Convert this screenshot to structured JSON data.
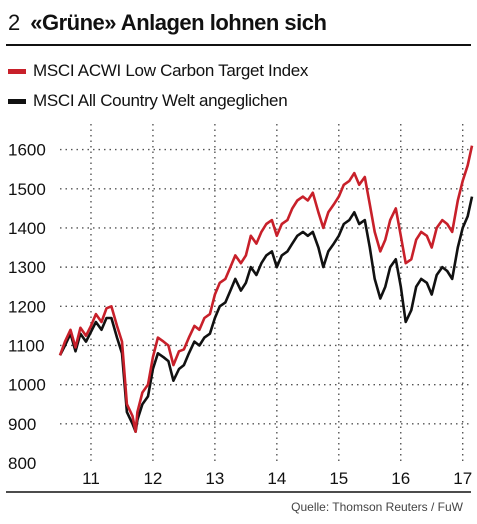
{
  "figure": {
    "number": "2",
    "title": "«Grüne» Anlagen lohnen sich",
    "source": "Quelle: Thomson Reuters / FuW"
  },
  "colors": {
    "red_series": "#c8202a",
    "black_series": "#111111",
    "grid": "#555555"
  },
  "chart_data": {
    "type": "line",
    "title": "«Grüne» Anlagen lohnen sich",
    "xlabel": "",
    "ylabel": "",
    "ylim": [
      800,
      1650
    ],
    "xlim": [
      2010.5,
      2017.15
    ],
    "yticks": [
      800,
      900,
      1000,
      1100,
      1200,
      1300,
      1400,
      1500,
      1600
    ],
    "xtick_labels": [
      "11",
      "12",
      "13",
      "14",
      "15",
      "16",
      "17"
    ],
    "xticks": [
      2011.0,
      2012.0,
      2013.0,
      2014.0,
      2015.0,
      2016.0,
      2017.0
    ],
    "grid": true,
    "legend_position": "top-left",
    "series": [
      {
        "name": "MSCI ACWI Low Carbon Target Index",
        "color": "#c8202a",
        "x": [
          2010.5,
          2010.58,
          2010.67,
          2010.75,
          2010.83,
          2010.92,
          2011.0,
          2011.08,
          2011.17,
          2011.25,
          2011.33,
          2011.42,
          2011.5,
          2011.58,
          2011.67,
          2011.72,
          2011.75,
          2011.83,
          2011.92,
          2012.0,
          2012.08,
          2012.17,
          2012.25,
          2012.33,
          2012.42,
          2012.5,
          2012.58,
          2012.67,
          2012.75,
          2012.83,
          2012.92,
          2013.0,
          2013.08,
          2013.17,
          2013.25,
          2013.33,
          2013.42,
          2013.5,
          2013.58,
          2013.67,
          2013.75,
          2013.83,
          2013.92,
          2014.0,
          2014.08,
          2014.17,
          2014.25,
          2014.33,
          2014.42,
          2014.5,
          2014.58,
          2014.67,
          2014.75,
          2014.83,
          2014.92,
          2015.0,
          2015.08,
          2015.17,
          2015.25,
          2015.33,
          2015.42,
          2015.5,
          2015.58,
          2015.67,
          2015.75,
          2015.83,
          2015.92,
          2016.0,
          2016.08,
          2016.17,
          2016.25,
          2016.33,
          2016.42,
          2016.5,
          2016.58,
          2016.67,
          2016.75,
          2016.83,
          2016.92,
          2017.0,
          2017.08,
          2017.15
        ],
        "y": [
          1075,
          1110,
          1140,
          1095,
          1145,
          1125,
          1150,
          1180,
          1160,
          1195,
          1200,
          1150,
          1110,
          950,
          920,
          880,
          930,
          980,
          1000,
          1070,
          1120,
          1110,
          1100,
          1050,
          1085,
          1090,
          1120,
          1150,
          1140,
          1170,
          1180,
          1230,
          1260,
          1270,
          1300,
          1330,
          1310,
          1330,
          1380,
          1360,
          1390,
          1410,
          1420,
          1380,
          1410,
          1420,
          1450,
          1470,
          1480,
          1470,
          1490,
          1440,
          1400,
          1440,
          1460,
          1480,
          1510,
          1520,
          1540,
          1510,
          1530,
          1460,
          1390,
          1340,
          1370,
          1420,
          1450,
          1380,
          1310,
          1320,
          1370,
          1390,
          1380,
          1350,
          1400,
          1420,
          1410,
          1390,
          1470,
          1520,
          1560,
          1610
        ]
      },
      {
        "name": "MSCI All Country Welt angeglichen",
        "color": "#111111",
        "x": [
          2010.5,
          2010.58,
          2010.67,
          2010.75,
          2010.83,
          2010.92,
          2011.0,
          2011.08,
          2011.17,
          2011.25,
          2011.33,
          2011.42,
          2011.5,
          2011.58,
          2011.67,
          2011.72,
          2011.75,
          2011.83,
          2011.92,
          2012.0,
          2012.08,
          2012.17,
          2012.25,
          2012.33,
          2012.42,
          2012.5,
          2012.58,
          2012.67,
          2012.75,
          2012.83,
          2012.92,
          2013.0,
          2013.08,
          2013.17,
          2013.25,
          2013.33,
          2013.42,
          2013.5,
          2013.58,
          2013.67,
          2013.75,
          2013.83,
          2013.92,
          2014.0,
          2014.08,
          2014.17,
          2014.25,
          2014.33,
          2014.42,
          2014.5,
          2014.58,
          2014.67,
          2014.75,
          2014.83,
          2014.92,
          2015.0,
          2015.08,
          2015.17,
          2015.25,
          2015.33,
          2015.42,
          2015.5,
          2015.58,
          2015.67,
          2015.75,
          2015.83,
          2015.92,
          2016.0,
          2016.08,
          2016.17,
          2016.25,
          2016.33,
          2016.42,
          2016.5,
          2016.58,
          2016.67,
          2016.75,
          2016.83,
          2016.92,
          2017.0,
          2017.08,
          2017.15
        ],
        "y": [
          1075,
          1100,
          1130,
          1085,
          1130,
          1110,
          1135,
          1160,
          1140,
          1170,
          1170,
          1120,
          1080,
          930,
          900,
          880,
          910,
          950,
          970,
          1040,
          1080,
          1070,
          1060,
          1010,
          1040,
          1050,
          1080,
          1110,
          1100,
          1120,
          1130,
          1170,
          1200,
          1210,
          1240,
          1270,
          1240,
          1260,
          1300,
          1280,
          1310,
          1330,
          1340,
          1300,
          1330,
          1340,
          1360,
          1380,
          1390,
          1380,
          1390,
          1350,
          1300,
          1340,
          1360,
          1380,
          1410,
          1420,
          1440,
          1410,
          1420,
          1350,
          1270,
          1220,
          1250,
          1300,
          1320,
          1250,
          1160,
          1190,
          1250,
          1270,
          1260,
          1230,
          1280,
          1300,
          1290,
          1270,
          1350,
          1400,
          1430,
          1480
        ]
      }
    ]
  }
}
